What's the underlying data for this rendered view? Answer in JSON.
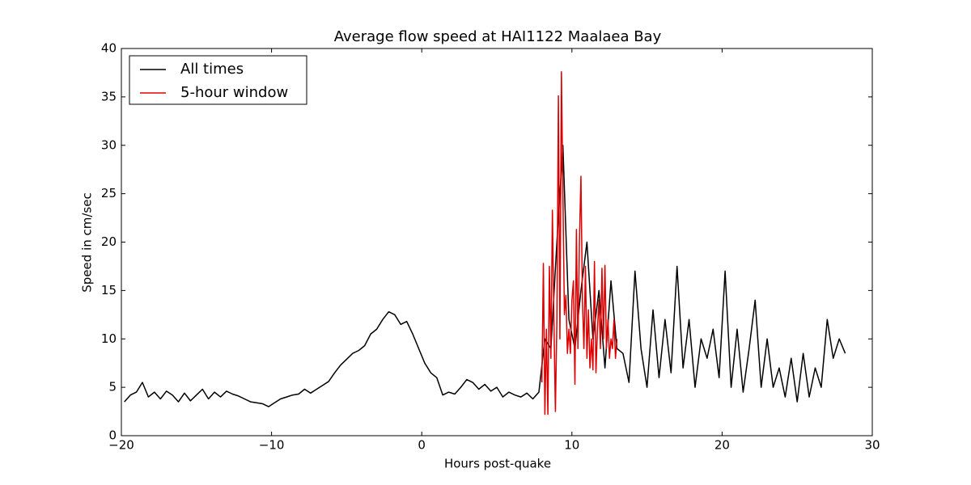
{
  "chart_data": {
    "type": "line",
    "title": "Average flow speed at HAI1122   Maalaea Bay",
    "x_label": "Hours post-quake",
    "y_label": "Speed in cm/sec",
    "xlim": [
      -20,
      30
    ],
    "xticks": [
      {
        "value": -20,
        "label": "−20"
      },
      {
        "value": -10,
        "label": "−10"
      },
      0,
      10,
      20,
      30
    ],
    "ylim": [
      0,
      40
    ],
    "yticks": [
      0,
      5,
      10,
      15,
      20,
      25,
      30,
      35,
      40
    ],
    "legend": "upper left",
    "series": [
      {
        "name": "All times",
        "color": "#000000",
        "x": [
          -19.8,
          -19.4,
          -19.0,
          -18.6,
          -18.2,
          -17.8,
          -17.4,
          -17.0,
          -16.6,
          -16.2,
          -15.8,
          -15.4,
          -15.0,
          -14.6,
          -14.2,
          -13.8,
          -13.4,
          -13.0,
          -12.6,
          -12.2,
          -11.8,
          -11.4,
          -11.0,
          -10.6,
          -10.2,
          -9.8,
          -9.4,
          -9.0,
          -8.6,
          -8.2,
          -7.8,
          -7.4,
          -7.0,
          -6.6,
          -6.2,
          -5.8,
          -5.4,
          -5.0,
          -4.6,
          -4.2,
          -3.8,
          -3.4,
          -3.0,
          -2.6,
          -2.2,
          -1.8,
          -1.4,
          -1.0,
          -0.6,
          -0.2,
          0.2,
          0.6,
          1.0,
          1.4,
          1.8,
          2.2,
          2.6,
          3.0,
          3.4,
          3.8,
          4.2,
          4.6,
          5.0,
          5.4,
          5.8,
          6.2,
          6.6,
          7.0,
          7.4,
          7.8,
          8.2,
          8.6,
          9.0,
          9.4,
          9.8,
          10.2,
          10.6,
          11.0,
          11.4,
          11.8,
          12.2,
          12.6,
          13.0,
          13.4,
          13.8,
          14.2,
          14.6,
          15.0,
          15.4,
          15.8,
          16.2,
          16.6,
          17.0,
          17.4,
          17.8,
          18.2,
          18.6,
          19.0,
          19.4,
          19.8,
          20.2,
          20.6,
          21.0,
          21.4,
          21.8,
          22.2,
          22.6,
          23.0,
          23.4,
          23.8,
          24.2,
          24.6,
          25.0,
          25.4,
          25.8,
          26.2,
          26.6,
          27.0,
          27.4,
          27.8,
          28.2
        ],
        "values": [
          3.5,
          4.2,
          4.5,
          5.5,
          4.0,
          4.5,
          3.8,
          4.6,
          4.2,
          3.5,
          4.4,
          3.6,
          4.2,
          4.8,
          3.8,
          4.5,
          4.0,
          4.6,
          4.3,
          4.1,
          3.8,
          3.5,
          3.4,
          3.3,
          3.0,
          3.4,
          3.8,
          4.0,
          4.2,
          4.3,
          4.8,
          4.4,
          4.8,
          5.2,
          5.6,
          6.5,
          7.3,
          7.9,
          8.5,
          8.8,
          9.3,
          10.5,
          11.0,
          12.0,
          12.8,
          12.5,
          11.5,
          11.8,
          10.5,
          9.0,
          7.5,
          6.5,
          6.0,
          4.2,
          4.5,
          4.3,
          5.0,
          5.8,
          5.5,
          4.8,
          5.3,
          4.6,
          5.0,
          4.0,
          4.5,
          4.2,
          4.0,
          4.4,
          3.8,
          4.5,
          10,
          9,
          20,
          30,
          12,
          9,
          15,
          20,
          10,
          15,
          7,
          16,
          9,
          8.5,
          5.5,
          17,
          9,
          5,
          13,
          6,
          12,
          6.5,
          17.5,
          7,
          12,
          5,
          10,
          8,
          11,
          6,
          17,
          5,
          11,
          4.5,
          9,
          14,
          5,
          10,
          5,
          7,
          4,
          8,
          3.5,
          8.5,
          4,
          7,
          5,
          12,
          8,
          10,
          8.5
        ]
      },
      {
        "name": "5-hour window",
        "color": "#dd0000",
        "x": [
          8.0,
          8.1,
          8.2,
          8.3,
          8.4,
          8.5,
          8.6,
          8.7,
          8.8,
          8.9,
          9.0,
          9.1,
          9.2,
          9.3,
          9.4,
          9.5,
          9.6,
          9.7,
          9.8,
          9.9,
          10.0,
          10.1,
          10.2,
          10.3,
          10.4,
          10.5,
          10.6,
          10.7,
          10.8,
          10.9,
          11.0,
          11.1,
          11.2,
          11.3,
          11.4,
          11.5,
          11.6,
          11.7,
          11.8,
          11.9,
          12.0,
          12.1,
          12.2,
          12.3,
          12.4,
          12.5,
          12.6,
          12.7,
          12.8,
          12.9,
          13.0
        ],
        "values": [
          5.5,
          17.8,
          2.2,
          11,
          2.2,
          17.5,
          8,
          23.3,
          12,
          2.5,
          12,
          35.1,
          10,
          37.6,
          25,
          12.5,
          14.5,
          8.5,
          11,
          8.5,
          14,
          16,
          5.3,
          21.3,
          9,
          20,
          26.8,
          14,
          9,
          17.5,
          8,
          13,
          7,
          10,
          6.8,
          18,
          6.5,
          11,
          14,
          9,
          17.3,
          10,
          17.6,
          9,
          12,
          8,
          10,
          9,
          12,
          8,
          10
        ]
      }
    ]
  }
}
